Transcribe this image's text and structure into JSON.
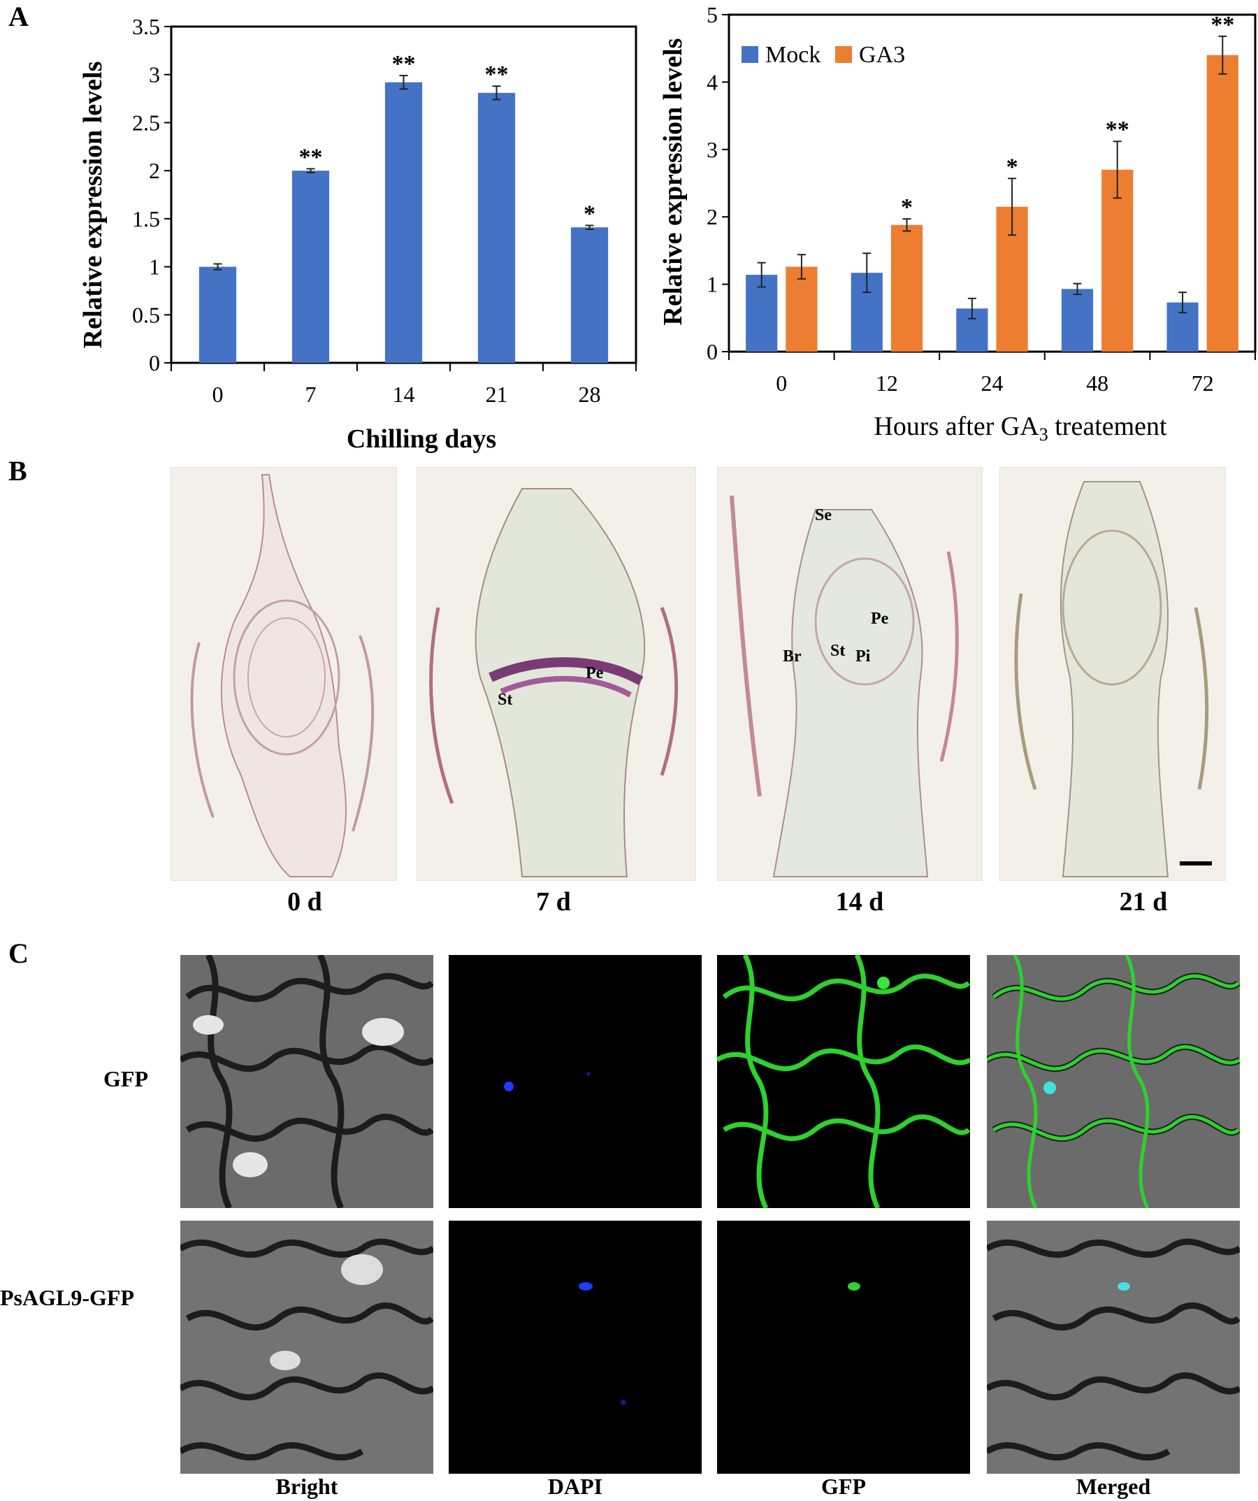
{
  "panels": {
    "a": "A",
    "b": "B",
    "c": "C"
  },
  "chart_data": [
    {
      "type": "bar",
      "categories": [
        "0",
        "7",
        "14",
        "21",
        "28"
      ],
      "series": [
        {
          "values": [
            1.0,
            2.0,
            2.92,
            2.81,
            1.41
          ],
          "errors": [
            0.03,
            0.02,
            0.07,
            0.07,
            0.02
          ]
        }
      ],
      "significance": [
        "",
        "**",
        "**",
        "**",
        "*"
      ],
      "xlabel": "Chilling days",
      "ylabel": "Relative expression levels",
      "ylim": [
        0,
        3.5
      ],
      "yticks": [
        "0",
        "0.5",
        "1",
        "1.5",
        "2",
        "2.5",
        "3",
        "3.5"
      ],
      "colors": [
        "#4472c4"
      ],
      "grid": false
    },
    {
      "type": "bar",
      "categories": [
        "0",
        "12",
        "24",
        "48",
        "72"
      ],
      "series": [
        {
          "name": "Mock",
          "values": [
            1.14,
            1.17,
            0.64,
            0.93,
            0.73
          ],
          "errors": [
            0.18,
            0.29,
            0.15,
            0.08,
            0.15
          ]
        },
        {
          "name": "GA3",
          "values": [
            1.26,
            1.88,
            2.15,
            2.7,
            4.4
          ],
          "errors": [
            0.18,
            0.09,
            0.42,
            0.42,
            0.28
          ]
        }
      ],
      "significance": [
        "",
        "*",
        "*",
        "**",
        "**"
      ],
      "xlabel_parts": [
        "Hours after GA",
        "3",
        " treatement"
      ],
      "ylabel": "Relative expression levels",
      "ylim": [
        0,
        5
      ],
      "yticks": [
        "0",
        "1",
        "2",
        "3",
        "4",
        "5"
      ],
      "colors": [
        "#4472c4",
        "#ed7d31"
      ],
      "legend": "top-left",
      "grid": false
    }
  ],
  "sections": {
    "days": [
      "0 d",
      "7 d",
      "14 d",
      "21 d"
    ],
    "labels_7d": {
      "pe": "Pe",
      "st": "St"
    },
    "labels_14d": {
      "se": "Se",
      "pe": "Pe",
      "br": "Br",
      "st": "St",
      "pi": "Pi"
    }
  },
  "localization": {
    "rows": [
      "GFP",
      "PsAGL9-GFP"
    ],
    "columns": [
      "Bright",
      "DAPI",
      "GFP",
      "Merged"
    ]
  }
}
